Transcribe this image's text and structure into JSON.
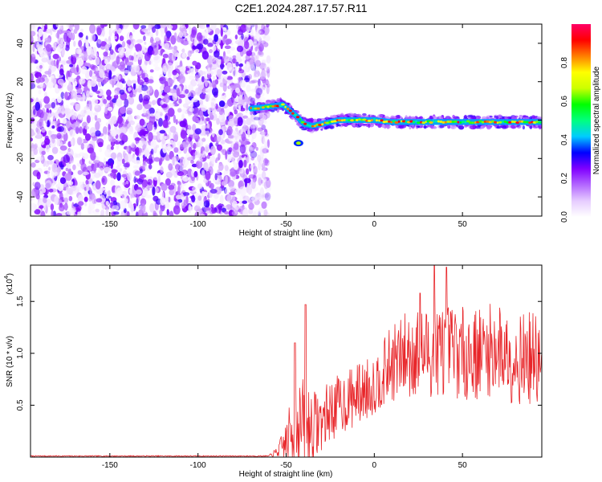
{
  "title": "C2E1.2024.287.17.57.R11",
  "chart_data": [
    {
      "type": "heatmap",
      "xlabel": "Height of straight line (km)",
      "ylabel": "Frequency (Hz)",
      "xlim": [
        -195,
        95
      ],
      "ylim": [
        -50,
        50
      ],
      "xticks": [
        -150,
        -100,
        -50,
        0,
        50
      ],
      "yticks": [
        -40,
        -20,
        0,
        20,
        40
      ],
      "noise_region_x": [
        -195,
        -65
      ],
      "ridge": {
        "x": [
          -70,
          -60,
          -52,
          -48,
          -44,
          -40,
          -35,
          -30,
          -20,
          -10,
          0,
          10,
          20,
          30,
          40,
          50,
          60,
          70,
          80,
          95
        ],
        "y": [
          6,
          7,
          8,
          5,
          2,
          -2,
          -3,
          -2,
          0,
          0,
          0,
          -1,
          -1,
          -1,
          -1,
          -1,
          -1,
          -1,
          -1,
          -1
        ]
      },
      "outlier_point": {
        "x": -43,
        "y": -12
      },
      "colorbar": {
        "label": "Normalized spectral amplitude",
        "range": [
          0,
          1
        ],
        "ticks": [
          "0.0",
          "0.2",
          "0.4",
          "0.6",
          "0.8"
        ],
        "colors": [
          "#ffffff",
          "#e6ccff",
          "#b366ff",
          "#8000ff",
          "#0000ff",
          "#00ccff",
          "#00ff80",
          "#00ff00",
          "#ccff00",
          "#ffff00",
          "#ff8000",
          "#ff0000",
          "#ff0066"
        ]
      }
    },
    {
      "type": "line",
      "xlabel": "Height of straight line (km)",
      "ylabel": "SNR (10 * v/v)",
      "scale_label": "(x10",
      "scale_exp": "4",
      "scale_close": ")",
      "xlim": [
        -195,
        95
      ],
      "ylim": [
        0,
        1.85
      ],
      "xticks": [
        -150,
        -100,
        -50,
        0,
        50
      ],
      "yticks": [
        "0.5",
        "1.0",
        "1.5"
      ],
      "ytick_values": [
        0.5,
        1.0,
        1.5
      ],
      "color": "#e8262a",
      "envelope": {
        "x": [
          -195,
          -60,
          -55,
          -50,
          -45,
          -40,
          -35,
          -30,
          -25,
          -20,
          -15,
          -10,
          -5,
          0,
          5,
          10,
          15,
          20,
          30,
          40,
          50,
          60,
          70,
          80,
          90,
          95
        ],
        "mean": [
          0.01,
          0.01,
          0.05,
          0.15,
          0.28,
          0.32,
          0.3,
          0.35,
          0.45,
          0.5,
          0.55,
          0.6,
          0.65,
          0.7,
          0.8,
          0.9,
          0.95,
          1.0,
          1.0,
          1.05,
          1.0,
          1.0,
          1.05,
          0.95,
          0.95,
          0.9
        ],
        "amp": [
          0.005,
          0.005,
          0.05,
          0.2,
          0.45,
          0.45,
          0.35,
          0.3,
          0.3,
          0.3,
          0.3,
          0.3,
          0.3,
          0.3,
          0.32,
          0.38,
          0.4,
          0.45,
          0.45,
          0.45,
          0.45,
          0.45,
          0.45,
          0.45,
          0.45,
          0.4
        ]
      },
      "peaks": [
        {
          "x": -39,
          "y": 1.47
        },
        {
          "x": -45,
          "y": 1.1
        },
        {
          "x": 34,
          "y": 1.85
        },
        {
          "x": 41,
          "y": 1.83
        },
        {
          "x": 26,
          "y": 1.58
        }
      ]
    }
  ]
}
